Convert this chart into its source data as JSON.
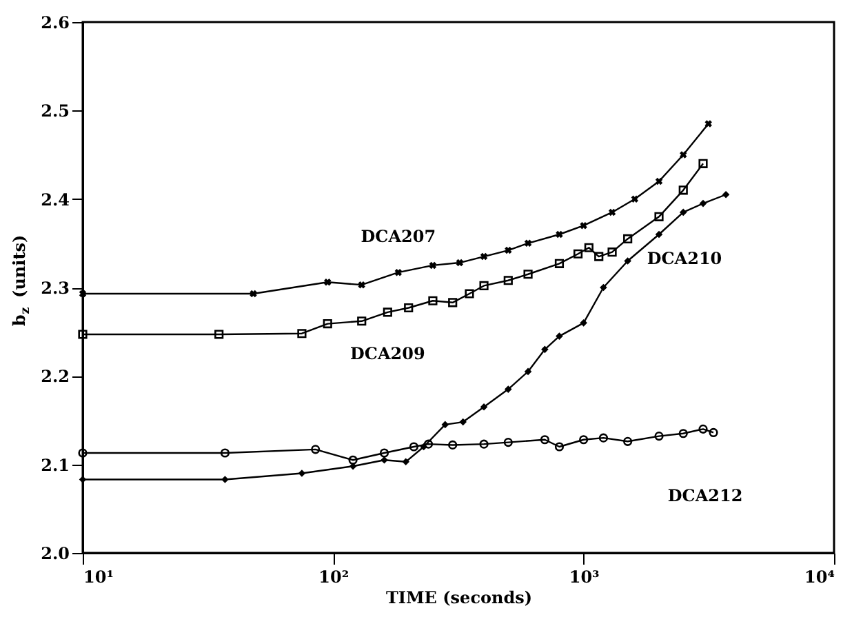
{
  "chart_data": {
    "type": "line",
    "xlabel": "TIME (seconds)",
    "ylabel": "b$_{z}$ (units)",
    "log": "x",
    "xlim": [
      10,
      10000
    ],
    "ylim": [
      2.0,
      2.6
    ],
    "xticks": [
      {
        "value": 10,
        "label": "10¹"
      },
      {
        "value": 100,
        "label": "10²"
      },
      {
        "value": 1000,
        "label": "10³"
      },
      {
        "value": 10000,
        "label": "10⁴"
      }
    ],
    "yticks": [
      {
        "value": 2.0,
        "label": "2.0"
      },
      {
        "value": 2.1,
        "label": "2.1"
      },
      {
        "value": 2.2,
        "label": "2.2"
      },
      {
        "value": 2.3,
        "label": "2.3"
      },
      {
        "value": 2.4,
        "label": "2.4"
      },
      {
        "value": 2.5,
        "label": "2.5"
      },
      {
        "value": 2.6,
        "label": "2.6"
      }
    ],
    "grid": false,
    "line_style": "solid",
    "series": [
      {
        "name": "DCA207",
        "color": "#000000",
        "marker": "cross",
        "x": [
          10,
          48,
          95,
          130,
          182,
          250,
          320,
          400,
          500,
          600,
          800,
          1000,
          1300,
          1600,
          2000,
          2500,
          3150
        ],
        "values": [
          2.293,
          2.293,
          2.306,
          2.303,
          2.317,
          2.325,
          2.328,
          2.335,
          2.342,
          2.35,
          2.36,
          2.37,
          2.385,
          2.4,
          2.42,
          2.45,
          2.485
        ]
      },
      {
        "name": "DCA209",
        "color": "#000000",
        "marker": "square",
        "x": [
          10,
          35,
          75,
          95,
          130,
          165,
          200,
          250,
          300,
          350,
          400,
          500,
          600,
          800,
          950,
          1050,
          1150,
          1300,
          1500,
          2000,
          2500,
          3000
        ],
        "values": [
          2.247,
          2.247,
          2.248,
          2.259,
          2.262,
          2.272,
          2.277,
          2.285,
          2.283,
          2.293,
          2.302,
          2.308,
          2.315,
          2.327,
          2.338,
          2.345,
          2.335,
          2.34,
          2.355,
          2.38,
          2.41,
          2.44
        ]
      },
      {
        "name": "DCA210",
        "color": "#000000",
        "marker": "diamond",
        "x": [
          10,
          37,
          75,
          120,
          160,
          195,
          230,
          280,
          330,
          400,
          500,
          600,
          700,
          800,
          1000,
          1200,
          1500,
          2000,
          2500,
          3000,
          3700
        ],
        "values": [
          2.083,
          2.083,
          2.09,
          2.098,
          2.105,
          2.103,
          2.12,
          2.145,
          2.148,
          2.165,
          2.185,
          2.205,
          2.23,
          2.245,
          2.26,
          2.3,
          2.33,
          2.36,
          2.385,
          2.395,
          2.405
        ]
      },
      {
        "name": "DCA212",
        "color": "#000000",
        "marker": "circle",
        "x": [
          10,
          37,
          85,
          120,
          160,
          210,
          240,
          300,
          400,
          500,
          700,
          800,
          1000,
          1200,
          1500,
          2000,
          2500,
          3000,
          3300
        ],
        "values": [
          2.113,
          2.113,
          2.117,
          2.105,
          2.113,
          2.12,
          2.123,
          2.122,
          2.123,
          2.125,
          2.128,
          2.12,
          2.128,
          2.13,
          2.126,
          2.132,
          2.135,
          2.14,
          2.136
        ]
      }
    ]
  }
}
